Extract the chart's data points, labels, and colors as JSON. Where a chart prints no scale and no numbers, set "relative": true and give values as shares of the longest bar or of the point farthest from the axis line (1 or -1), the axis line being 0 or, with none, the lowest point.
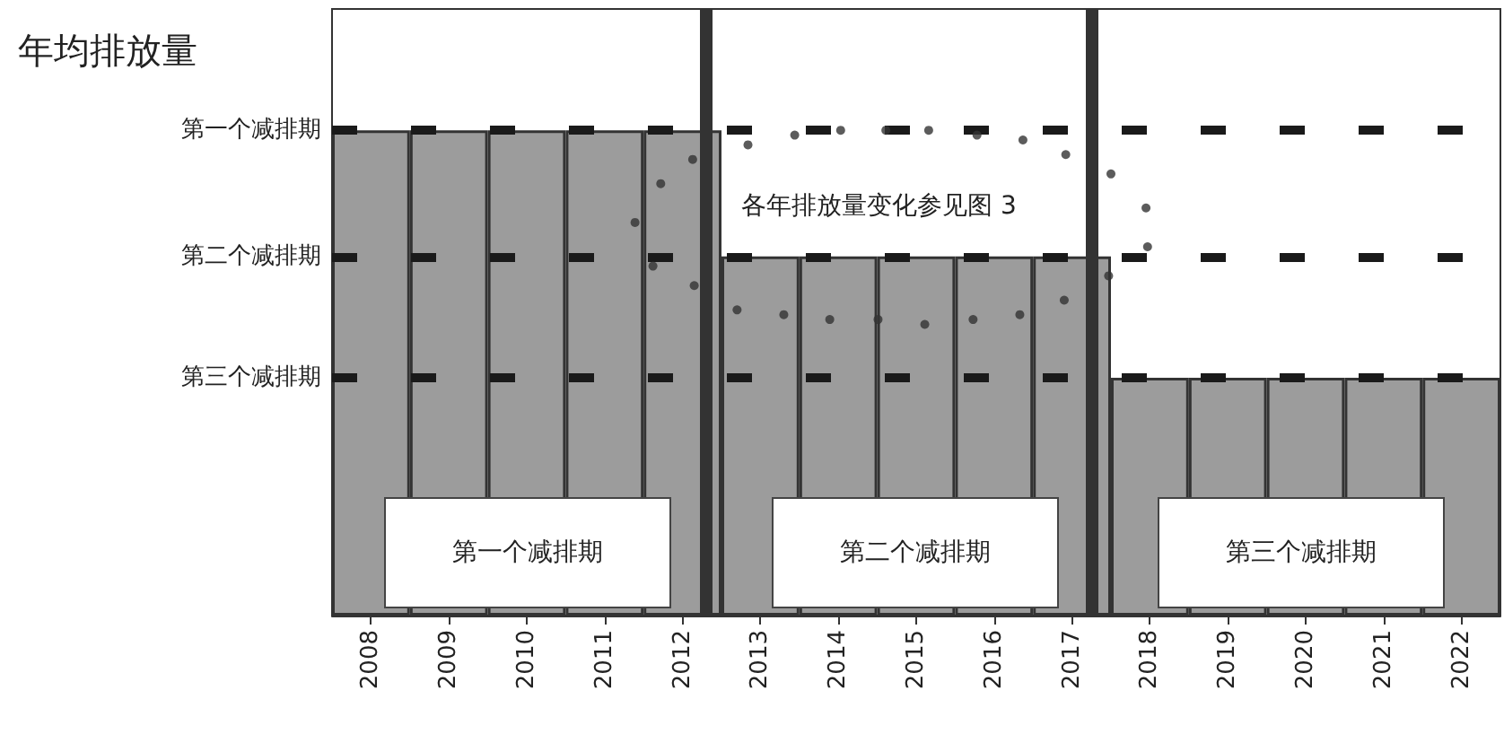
{
  "chart_data": {
    "type": "bar",
    "relative": true,
    "ylabel": "年均排放量",
    "color": "#9c9c9c",
    "x": [
      2008,
      2009,
      2010,
      2011,
      2012,
      2013,
      2014,
      2015,
      2016,
      2017,
      2018,
      2019,
      2020,
      2021,
      2022
    ],
    "values": [
      1,
      1,
      1,
      1,
      1,
      0.74,
      0.74,
      0.74,
      0.74,
      0.74,
      0.49,
      0.49,
      0.49,
      0.49,
      0.49
    ],
    "xlim": [
      2007.5,
      2022.5
    ],
    "xticks": [
      2008,
      2009,
      2010,
      2011,
      2012,
      2013,
      2014,
      2015,
      2016,
      2017,
      2018,
      2019,
      2020,
      2021,
      2022
    ],
    "series": [
      {
        "type": "scatter",
        "color": "#333333",
        "marker": "circle",
        "x": [
          2011.39,
          2011.62,
          2011.72,
          2012.13,
          2012.15,
          2012.7,
          2012.84,
          2013.3,
          2013.44,
          2013.89,
          2014.03,
          2014.51,
          2014.61,
          2015.11,
          2015.16,
          2015.73,
          2015.78,
          2016.33,
          2016.37,
          2016.9,
          2016.92,
          2017.47,
          2017.5,
          2017.95,
          2017.97
        ],
        "values": [
          0.81,
          0.72,
          0.89,
          0.94,
          0.68,
          0.63,
          0.97,
          0.62,
          0.99,
          0.61,
          1.0,
          0.61,
          1.0,
          0.6,
          1.0,
          0.61,
          0.99,
          0.62,
          0.98,
          0.65,
          0.95,
          0.7,
          0.91,
          0.84,
          0.76
        ]
      }
    ],
    "ref_lines": [
      {
        "axis": "y",
        "value": 1,
        "label": "第一个减排期",
        "color": "#1a1a1a",
        "line_style": "dashed"
      },
      {
        "axis": "y",
        "value": 0.74,
        "label": "第二个减排期",
        "color": "#1a1a1a",
        "line_style": "dashed"
      },
      {
        "axis": "y",
        "value": 0.49,
        "label": "第三个减排期",
        "color": "#1a1a1a",
        "line_style": "dashed"
      },
      {
        "axis": "x",
        "value": 2012.3,
        "color": "#333333",
        "line_style": "solid"
      },
      {
        "axis": "x",
        "value": 2017.25,
        "color": "#333333",
        "line_style": "solid"
      }
    ],
    "annotations": [
      "各年排放量变化参见图 3",
      "第一个减排期",
      "第二个减排期",
      "第三个减排期"
    ],
    "grid": false
  }
}
